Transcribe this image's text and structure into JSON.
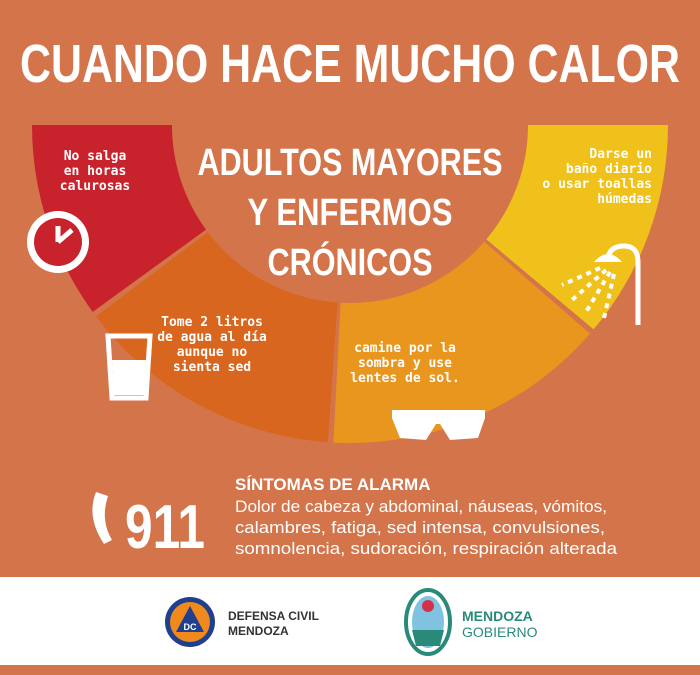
{
  "header": {
    "title": "CUANDO HACE MUCHO CALOR"
  },
  "center": {
    "lines": [
      "ADULTOS MAYORES",
      "Y ENFERMOS",
      "CRÓNICOS"
    ]
  },
  "tips": [
    {
      "lines": [
        "No salga",
        "en horas",
        "calurosas"
      ]
    },
    {
      "lines": [
        "Tome 2 litros",
        "de agua al día",
        "aunque no",
        "sienta sed"
      ]
    },
    {
      "lines": [
        "camine por la",
        "sombra  y use",
        "lentes de sol."
      ]
    },
    {
      "lines": [
        "Darse un",
        "baño diario",
        "o usar toallas",
        "húmedas"
      ]
    }
  ],
  "alarm": {
    "phone": "911",
    "title": "SÍNTOMAS DE ALARMA",
    "lines": [
      "Dolor de cabeza y abdominal, náuseas, vómitos,",
      "calambres, fatiga, sed intensa, convulsiones,",
      "somnolencia, sudoración, respiración alterada"
    ]
  },
  "footer": {
    "left": {
      "badge": "DC",
      "lines": [
        "DEFENSA CIVIL",
        "MENDOZA"
      ]
    },
    "right": {
      "lines": [
        "MENDOZA",
        "GOBIERNO"
      ]
    }
  }
}
